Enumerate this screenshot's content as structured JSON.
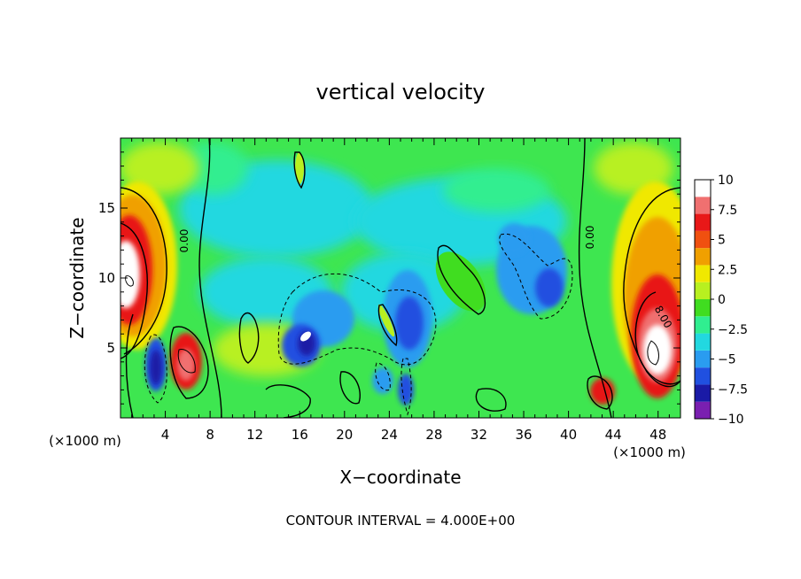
{
  "chart_data": {
    "type": "heatmap",
    "title": "vertical velocity",
    "xlabel": "X−coordinate",
    "ylabel": "Z−coordinate",
    "x_unit_label": "(×1000 m)",
    "x_unit_label_right": "(×1000 m)",
    "xlim": [
      0,
      50
    ],
    "ylim": [
      0,
      20
    ],
    "x_ticks": [
      4,
      8,
      12,
      16,
      20,
      24,
      28,
      32,
      36,
      40,
      44,
      48
    ],
    "y_ticks": [
      5,
      10,
      15
    ],
    "contour_interval_text": "CONTOUR INTERVAL = 4.000E+00",
    "contour_labels": [
      "0.00",
      "0.00",
      "8.00"
    ],
    "colorbar": {
      "min": -10,
      "max": 10,
      "tick_values": [
        10,
        7.5,
        5,
        2.5,
        0,
        -2.5,
        -5,
        -7.5,
        -10
      ],
      "tick_labels": [
        "10",
        "7.5",
        "5",
        "2.5",
        "0",
        "−2.5",
        "−5",
        "−7.5",
        "−10"
      ],
      "colors": [
        "#7a1fb0",
        "#1a1aa6",
        "#2050e0",
        "#2a9cf0",
        "#22d8e0",
        "#30ee90",
        "#40dd20",
        "#b8f020",
        "#f0e800",
        "#f0a000",
        "#f05010",
        "#e81818",
        "#f07070",
        "#ffffff"
      ]
    },
    "features": [
      {
        "label": "updraft core",
        "x": 1.0,
        "z": 10.0,
        "w": 10
      },
      {
        "label": "updraft core",
        "x": 5.8,
        "z": 4.0,
        "w": 8
      },
      {
        "label": "downdraft core",
        "x": 3.2,
        "z": 3.5,
        "w": -9
      },
      {
        "label": "updraft core",
        "x": 16.5,
        "z": 5.8,
        "w": 10
      },
      {
        "label": "downdraft core",
        "x": 15.8,
        "z": 5.0,
        "w": -7
      },
      {
        "label": "downdraft core",
        "x": 26.0,
        "z": 6.5,
        "w": -6
      },
      {
        "label": "downdraft core",
        "x": 38.0,
        "z": 9.0,
        "w": -5
      },
      {
        "label": "updraft core",
        "x": 47.5,
        "z": 5.0,
        "w": 10
      },
      {
        "label": "updraft core",
        "x": 43.0,
        "z": 2.0,
        "w": 8
      }
    ]
  }
}
